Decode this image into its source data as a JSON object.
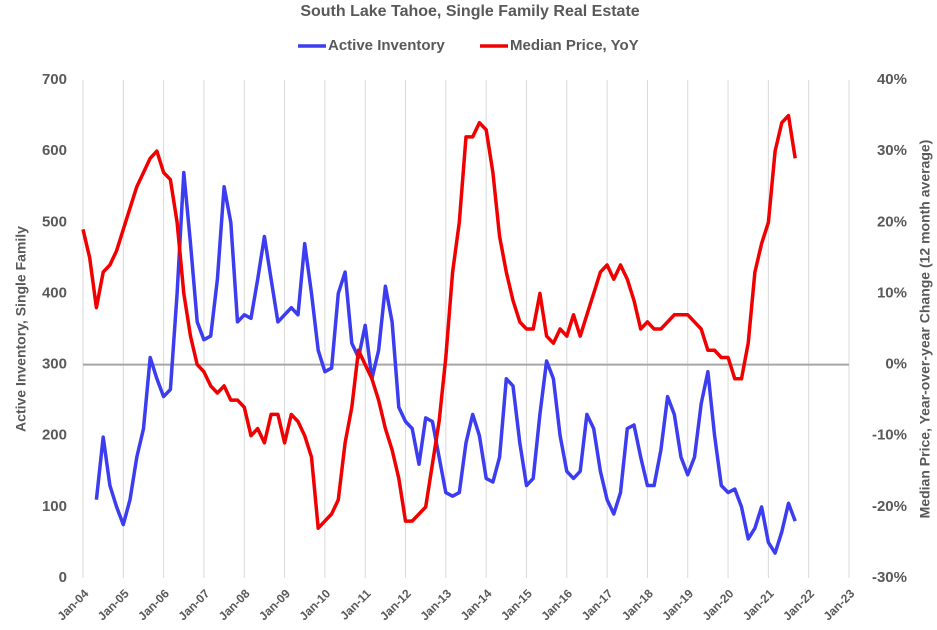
{
  "chart_data": {
    "type": "line",
    "title": "South Lake Tahoe, Single Family Real Estate",
    "ylabel": "Active Inventory, Single Family",
    "y2label": "Median Price, Year-over-year Change (12 month average)",
    "x": [
      "2004-01",
      "2004-03",
      "2004-05",
      "2004-07",
      "2004-09",
      "2004-11",
      "2005-01",
      "2005-03",
      "2005-05",
      "2005-07",
      "2005-09",
      "2005-11",
      "2006-01",
      "2006-03",
      "2006-05",
      "2006-07",
      "2006-09",
      "2006-11",
      "2007-01",
      "2007-03",
      "2007-05",
      "2007-07",
      "2007-09",
      "2007-11",
      "2008-01",
      "2008-03",
      "2008-05",
      "2008-07",
      "2008-09",
      "2008-11",
      "2009-01",
      "2009-03",
      "2009-05",
      "2009-07",
      "2009-09",
      "2009-11",
      "2010-01",
      "2010-03",
      "2010-05",
      "2010-07",
      "2010-09",
      "2010-11",
      "2011-01",
      "2011-03",
      "2011-05",
      "2011-07",
      "2011-09",
      "2011-11",
      "2012-01",
      "2012-03",
      "2012-05",
      "2012-07",
      "2012-09",
      "2012-11",
      "2013-01",
      "2013-03",
      "2013-05",
      "2013-07",
      "2013-09",
      "2013-11",
      "2014-01",
      "2014-03",
      "2014-05",
      "2014-07",
      "2014-09",
      "2014-11",
      "2015-01",
      "2015-03",
      "2015-05",
      "2015-07",
      "2015-09",
      "2015-11",
      "2016-01",
      "2016-03",
      "2016-05",
      "2016-07",
      "2016-09",
      "2016-11",
      "2017-01",
      "2017-03",
      "2017-05",
      "2017-07",
      "2017-09",
      "2017-11",
      "2018-01",
      "2018-03",
      "2018-05",
      "2018-07",
      "2018-09",
      "2018-11",
      "2019-01",
      "2019-03",
      "2019-05",
      "2019-07",
      "2019-09",
      "2019-11",
      "2020-01",
      "2020-03",
      "2020-05",
      "2020-07",
      "2020-09",
      "2020-11",
      "2021-01",
      "2021-03",
      "2021-05",
      "2021-07",
      "2021-09"
    ],
    "series": [
      {
        "name": "Active Inventory",
        "color": "#3c3cf0",
        "axis": "y",
        "values": [
          null,
          null,
          110,
          198,
          130,
          100,
          75,
          110,
          170,
          210,
          310,
          280,
          255,
          265,
          400,
          570,
          470,
          360,
          335,
          340,
          420,
          550,
          500,
          360,
          370,
          365,
          420,
          480,
          420,
          360,
          370,
          380,
          370,
          470,
          400,
          320,
          290,
          295,
          400,
          430,
          330,
          310,
          355,
          280,
          320,
          410,
          360,
          240,
          220,
          210,
          160,
          225,
          220,
          170,
          120,
          115,
          120,
          190,
          230,
          200,
          140,
          135,
          170,
          280,
          270,
          190,
          130,
          140,
          230,
          305,
          280,
          200,
          150,
          140,
          150,
          230,
          210,
          150,
          110,
          90,
          120,
          210,
          215,
          170,
          130,
          130,
          180,
          255,
          230,
          170,
          145,
          170,
          245,
          290,
          200,
          130,
          120,
          125,
          100,
          55,
          70,
          100,
          50,
          35,
          65,
          105,
          80
        ]
      },
      {
        "name": "Median Price, YoY",
        "color": "#f00000",
        "axis": "y2",
        "values": [
          19,
          15,
          8,
          13,
          14,
          16,
          19,
          22,
          25,
          27,
          29,
          30,
          27,
          26,
          20,
          10,
          4,
          0,
          -1,
          -3,
          -4,
          -3,
          -5,
          -5,
          -6,
          -10,
          -9,
          -11,
          -7,
          -7,
          -11,
          -7,
          -8,
          -10,
          -13,
          -23,
          -22,
          -21,
          -19,
          -11,
          -6,
          2,
          0,
          -2,
          -5,
          -9,
          -12,
          -16,
          -22,
          -22,
          -21,
          -20,
          -14,
          -8,
          1,
          13,
          20,
          32,
          32,
          34,
          33,
          27,
          18,
          13,
          9,
          6,
          5,
          5,
          10,
          4,
          3,
          5,
          4,
          7,
          4,
          7,
          10,
          13,
          14,
          12,
          14,
          12,
          9,
          5,
          6,
          5,
          5,
          6,
          7,
          7,
          7,
          6,
          5,
          2,
          2,
          1,
          1,
          -2,
          -2,
          3,
          13,
          17,
          20,
          30,
          34,
          35,
          29
        ]
      }
    ],
    "xlim": [
      "2004-01",
      "2023-01"
    ],
    "xticks": [
      {
        "value": "2004-01",
        "label": "Jan-04"
      },
      {
        "value": "2005-01",
        "label": "Jan-05"
      },
      {
        "value": "2006-01",
        "label": "Jan-06"
      },
      {
        "value": "2007-01",
        "label": "Jan-07"
      },
      {
        "value": "2008-01",
        "label": "Jan-08"
      },
      {
        "value": "2009-01",
        "label": "Jan-09"
      },
      {
        "value": "2010-01",
        "label": "Jan-10"
      },
      {
        "value": "2011-01",
        "label": "Jan-11"
      },
      {
        "value": "2012-01",
        "label": "Jan-12"
      },
      {
        "value": "2013-01",
        "label": "Jan-13"
      },
      {
        "value": "2014-01",
        "label": "Jan-14"
      },
      {
        "value": "2015-01",
        "label": "Jan-15"
      },
      {
        "value": "2016-01",
        "label": "Jan-16"
      },
      {
        "value": "2017-01",
        "label": "Jan-17"
      },
      {
        "value": "2018-01",
        "label": "Jan-18"
      },
      {
        "value": "2019-01",
        "label": "Jan-19"
      },
      {
        "value": "2020-01",
        "label": "Jan-20"
      },
      {
        "value": "2021-01",
        "label": "Jan-21"
      },
      {
        "value": "2022-01",
        "label": "Jan-22"
      },
      {
        "value": "2023-01",
        "label": "Jan-23"
      }
    ],
    "ylim": [
      0,
      700
    ],
    "yticks": [
      0,
      100,
      200,
      300,
      400,
      500,
      600,
      700
    ],
    "y2lim": [
      -30,
      40
    ],
    "y2ticks": [
      {
        "value": -30,
        "label": "-30%"
      },
      {
        "value": -20,
        "label": "-20%"
      },
      {
        "value": -10,
        "label": "-10%"
      },
      {
        "value": 0,
        "label": "0%"
      },
      {
        "value": 10,
        "label": "10%"
      },
      {
        "value": 20,
        "label": "20%"
      },
      {
        "value": 30,
        "label": "30%"
      },
      {
        "value": 40,
        "label": "40%"
      }
    ],
    "grid": "x",
    "legend": "top"
  }
}
